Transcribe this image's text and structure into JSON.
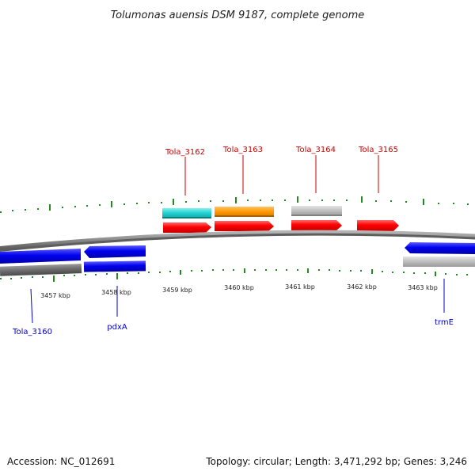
{
  "title": "Tolumonas auensis DSM 9187, complete genome",
  "footer": {
    "accession": "Accession: NC_012691",
    "summary": "Topology: circular; Length: 3,471,292 bp; Genes: 3,246"
  },
  "colors": {
    "forward_gene": "#ff0000",
    "reverse_gene": "#0000ee",
    "forward_label": "#cc0000",
    "reverse_label": "#0000cc",
    "backbone": "#888888",
    "ticks": "#228b22",
    "cyan": "#1fcfcf",
    "orange": "#ff9900",
    "gray": "#bdbdbd",
    "dark_gray": "#6b6b6b"
  },
  "ruler": {
    "unit": "kbp",
    "labels": [
      "3457 kbp",
      "3458 kbp",
      "3459 kbp",
      "3460 kbp",
      "3461 kbp",
      "3462 kbp",
      "3463 kbp"
    ]
  },
  "forward_genes": [
    {
      "label": "Tola_3162"
    },
    {
      "label": "Tola_3163"
    },
    {
      "label": "Tola_3164"
    },
    {
      "label": "Tola_3165"
    }
  ],
  "reverse_genes": [
    {
      "label": "Tola_3160"
    },
    {
      "label": "pdxA"
    },
    {
      "label": "trmE"
    }
  ]
}
